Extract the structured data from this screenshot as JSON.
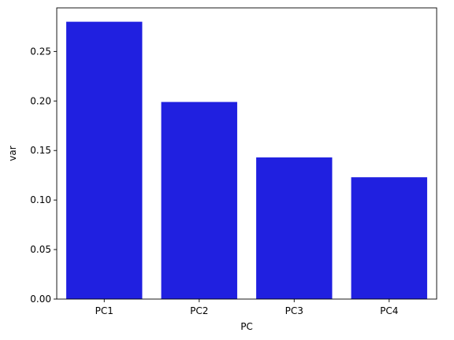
{
  "chart_data": {
    "type": "bar",
    "categories": [
      "PC1",
      "PC2",
      "PC3",
      "PC4"
    ],
    "values": [
      0.28,
      0.199,
      0.143,
      0.123
    ],
    "title": "",
    "xlabel": "PC",
    "ylabel": "var",
    "ylim": [
      0,
      0.294
    ],
    "yticks": [
      "0.00",
      "0.05",
      "0.10",
      "0.15",
      "0.20",
      "0.25"
    ],
    "bar_color": "#2020e0",
    "grid": false,
    "legend": "none"
  }
}
